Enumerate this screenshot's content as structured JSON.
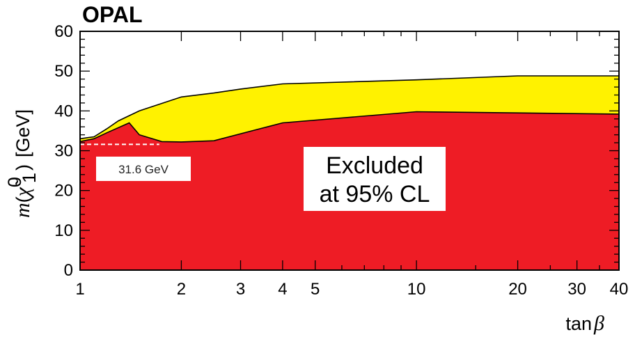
{
  "chart_data": {
    "type": "area",
    "experiment_label": "OPAL",
    "xlabel_prefix": "tan",
    "xlabel_symbol": "β",
    "ylabel_mass_symbol": "m",
    "ylabel_particle": "χ̃",
    "ylabel_superscript": "0",
    "ylabel_subscript": "1",
    "ylabel_unit": "[GeV]",
    "x_scale": "log",
    "xlim": [
      1,
      40
    ],
    "ylim": [
      0,
      60
    ],
    "x_ticks": [
      1,
      2,
      3,
      4,
      5,
      10,
      20,
      30,
      40
    ],
    "x_tick_labels": [
      "1",
      "2",
      "3",
      "4",
      "5",
      "10",
      "20",
      "30",
      "40"
    ],
    "y_ticks": [
      0,
      10,
      20,
      30,
      40,
      50,
      60
    ],
    "y_tick_labels": [
      "0",
      "10",
      "20",
      "30",
      "40",
      "50",
      "60"
    ],
    "colors": {
      "excluded_fill": "#ee1c25",
      "band_fill": "#fff200",
      "line": "#000000",
      "dashed_line": "#ffffff"
    },
    "series": [
      {
        "name": "",
        "fill": "yellow",
        "x": [
          1,
          1.1,
          1.2,
          1.3,
          1.5,
          2,
          2.5,
          3,
          4,
          10,
          20,
          40
        ],
        "y": [
          33.0,
          33.5,
          35.5,
          37.5,
          40.0,
          43.5,
          44.5,
          45.5,
          46.8,
          47.8,
          48.8,
          48.8
        ]
      },
      {
        "name": "",
        "fill": "red",
        "x": [
          1,
          1.1,
          1.2,
          1.4,
          1.5,
          1.75,
          2,
          2.5,
          4,
          10,
          40
        ],
        "y": [
          32.3,
          33.0,
          34.5,
          37.0,
          34.0,
          32.3,
          32.2,
          32.5,
          37.0,
          39.8,
          39.2
        ]
      }
    ],
    "reference_line": {
      "y": 31.6,
      "x_start": 1,
      "x_end": 1.72,
      "style": "dashed"
    },
    "annotations": {
      "reference_label": "31.6 GeV",
      "excluded_line1": "Excluded",
      "excluded_line2": "at 95% CL"
    }
  }
}
